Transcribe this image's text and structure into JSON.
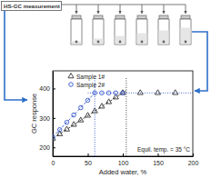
{
  "header": {
    "label": "HS-GC measurement"
  },
  "chart_data": {
    "type": "scatter",
    "x_label": "Added water, %",
    "y_label": "GC response",
    "annotations": [
      "Equil. temp. = 35 °C"
    ],
    "xlim": [
      0,
      200
    ],
    "ylim": [
      170,
      460
    ],
    "xticks": [
      0,
      50,
      100,
      150,
      200
    ],
    "yticks": [
      200,
      300,
      400
    ],
    "legend": "upper-left",
    "series": [
      {
        "name": "Sample 1#",
        "type": "scatter",
        "marker": "triangle",
        "color": "#333333",
        "x": [
          0,
          10,
          20,
          30,
          40,
          50,
          60,
          70,
          80,
          90,
          100,
          125,
          150,
          175
        ],
        "values": [
          230,
          245,
          261,
          277,
          292,
          308,
          323,
          339,
          354,
          370,
          385,
          385,
          385,
          385
        ]
      },
      {
        "name": "Sample 2#",
        "type": "scatter",
        "marker": "circle",
        "color": "#3355cc",
        "x": [
          0,
          10,
          20,
          30,
          40,
          50,
          60,
          70,
          80,
          90,
          100
        ],
        "values": [
          235,
          260,
          285,
          310,
          335,
          360,
          385,
          385,
          385,
          385,
          385
        ]
      },
      {
        "type": "line",
        "line_style": "dashed",
        "color": "#333333",
        "x": [
          0,
          105
        ],
        "values": [
          230,
          393
        ]
      },
      {
        "type": "line",
        "line_style": "dashed",
        "color": "#3355cc",
        "x": [
          0,
          60
        ],
        "values": [
          235,
          385
        ]
      },
      {
        "type": "line",
        "line_style": "dotted",
        "color": "#3355cc",
        "x": [
          50,
          200
        ],
        "values": [
          385,
          385
        ]
      },
      {
        "type": "line",
        "line_style": "dotted",
        "color": "#3355cc",
        "x": [
          60,
          60
        ],
        "values": [
          170,
          440
        ]
      },
      {
        "type": "line",
        "line_style": "dotted",
        "color": "#333333",
        "x": [
          105,
          105
        ],
        "values": [
          170,
          440
        ]
      }
    ]
  }
}
